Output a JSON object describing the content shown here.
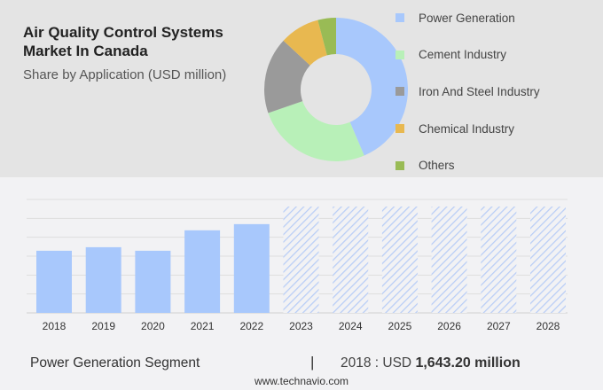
{
  "header": {
    "title_line1": "Air Quality Control Systems",
    "title_line2": "Market In Canada",
    "subtitle": "Share by Application (USD million)"
  },
  "chart_data": [
    {
      "type": "pie",
      "style": "donut",
      "labels": [
        "Power Generation",
        "Cement Industry",
        "Iron And Steel Industry",
        "Chemical Industry",
        "Others"
      ],
      "values": [
        43.6,
        26.1,
        17.2,
        9.0,
        4.1
      ],
      "colors": [
        "#a8c8fc",
        "#b8f0b8",
        "#9a9a9a",
        "#e8b850",
        "#99bb55"
      ],
      "legend": "right"
    },
    {
      "type": "bar",
      "categories": [
        "2018",
        "2019",
        "2020",
        "2021",
        "2022",
        "2023",
        "2024",
        "2025",
        "2026",
        "2027",
        "2028"
      ],
      "values": [
        1643.2,
        1737,
        1643,
        2183,
        2347,
        null,
        null,
        null,
        null,
        null,
        null
      ],
      "forecast": [
        false,
        false,
        false,
        false,
        false,
        true,
        true,
        true,
        true,
        true,
        true
      ],
      "ylim": [
        0,
        3000
      ],
      "grid": true,
      "color": "#a8c8fc"
    }
  ],
  "footer": {
    "segment": "Power Generation Segment",
    "separator": "|",
    "year_label": "2018 : USD",
    "value": "1,643.20 million",
    "url": "www.technavio.com"
  }
}
